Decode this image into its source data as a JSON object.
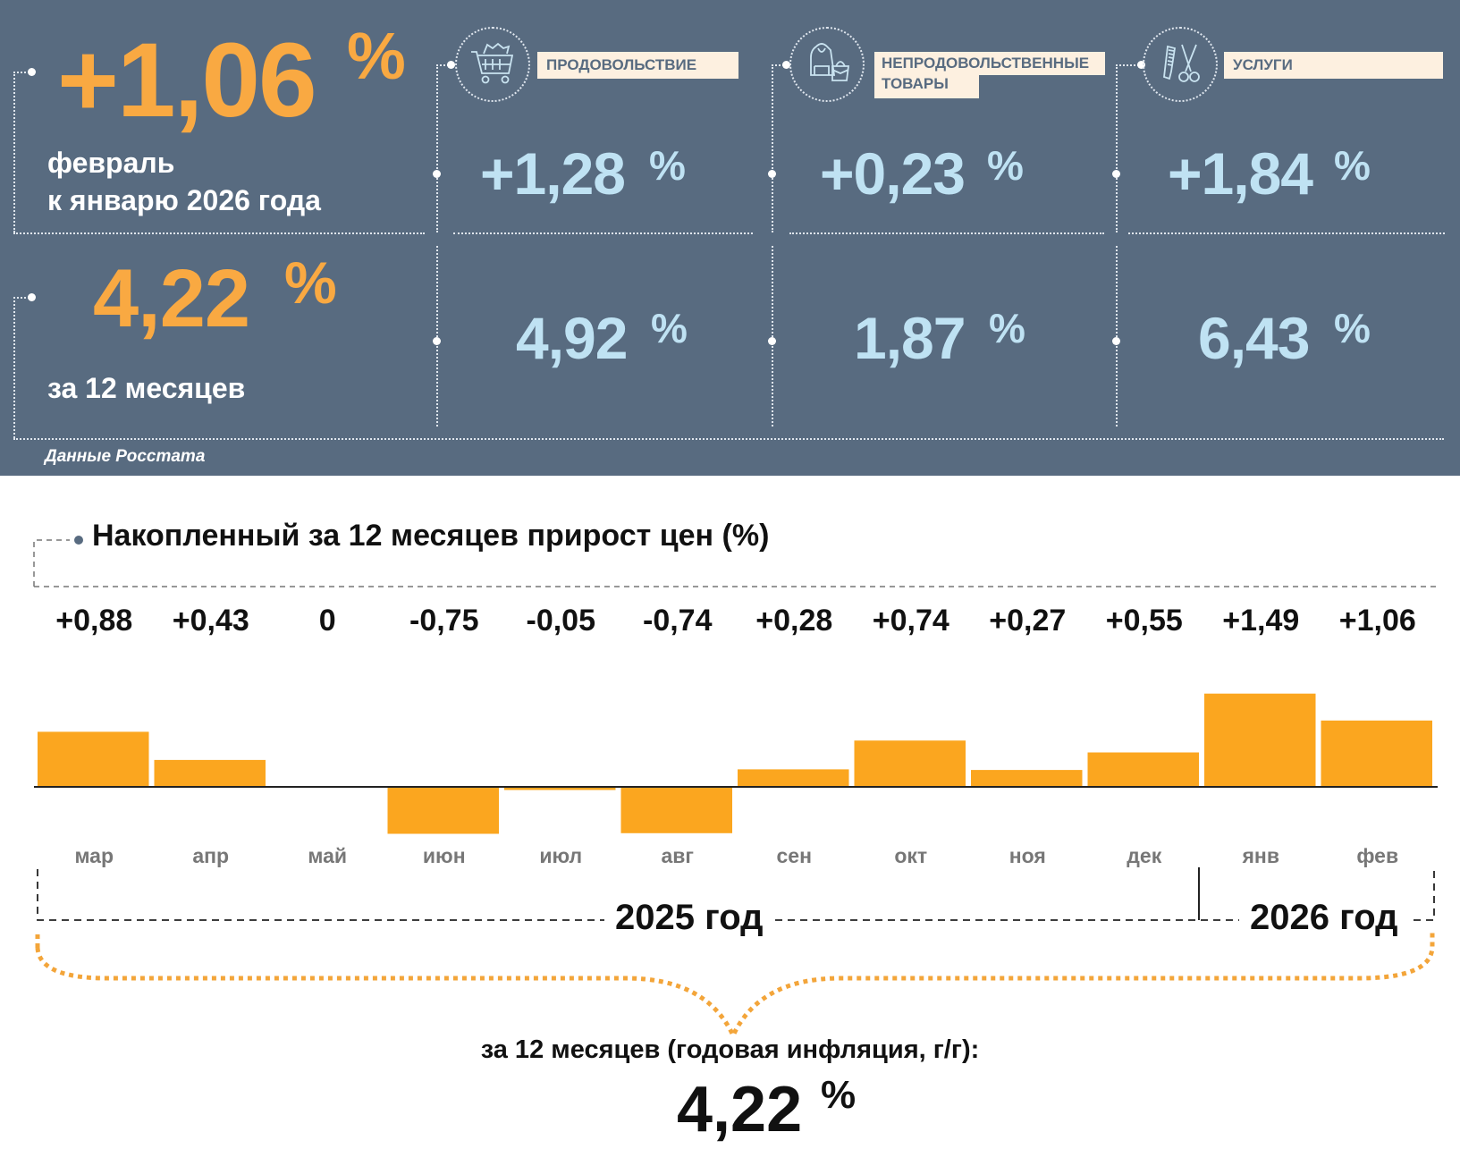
{
  "header": {
    "monthly": {
      "value": "+1,06",
      "unit": "%",
      "caption_line1": "февраль",
      "caption_line2": "к январю 2026 года"
    },
    "annual": {
      "value": "4,22",
      "unit": "%",
      "caption": "за 12 месяцев"
    },
    "categories": [
      {
        "label": "ПРОДОВОЛЬСТВИЕ",
        "icon": "shopping-cart-icon",
        "monthly": "+1,28",
        "annual": "4,92",
        "unit": "%"
      },
      {
        "label_line1": "НЕПРОДОВОЛЬСТВЕННЫЕ",
        "label_line2": "ТОВАРЫ",
        "icon": "hoodie-bag-icon",
        "monthly": "+0,23",
        "annual": "1,87",
        "unit": "%"
      },
      {
        "label": "УСЛУГИ",
        "icon": "comb-scissors-icon",
        "monthly": "+1,84",
        "annual": "6,43",
        "unit": "%"
      }
    ],
    "source": "Данные Росстата"
  },
  "chart_data": {
    "type": "bar",
    "title": "Накопленный за 12 месяцев прирост цен (%)",
    "categories": [
      "мар",
      "апр",
      "май",
      "июн",
      "июл",
      "авг",
      "сен",
      "окт",
      "ноя",
      "дек",
      "янв",
      "фев"
    ],
    "values": [
      0.88,
      0.43,
      0,
      -0.75,
      -0.05,
      -0.74,
      0.28,
      0.74,
      0.27,
      0.55,
      1.49,
      1.06
    ],
    "value_labels": [
      "+0,88",
      "+0,43",
      "0",
      "-0,75",
      "-0,05",
      "-0,74",
      "+0,28",
      "+0,74",
      "+0,27",
      "+0,55",
      "+1,49",
      "+1,06"
    ],
    "year_groups": [
      {
        "label": "2025 год",
        "months": 10
      },
      {
        "label": "2026 год",
        "months": 2
      }
    ],
    "xlabel": "",
    "ylabel": "",
    "grid": false,
    "bar_color": "#fba61f"
  },
  "summary": {
    "text": "за 12 месяцев (годовая инфляция, г/г):",
    "value": "4,22",
    "unit": "%"
  },
  "colors": {
    "panel": "#586b80",
    "accent_orange": "#f9a942",
    "accent_blue": "#bfe2f3",
    "label_bg": "#fdf0e0"
  }
}
